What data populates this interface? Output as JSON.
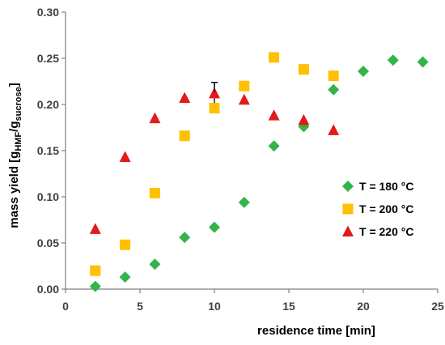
{
  "chart_data": {
    "type": "scatter",
    "xlabel": "residence time [min]",
    "ylabel": {
      "prefix": "mass yield  [g",
      "sub1": "HMF",
      "mid": "/g",
      "sub2": "sucrose",
      "suffix": "]"
    },
    "xlim": [
      0,
      25
    ],
    "ylim": [
      0,
      0.3
    ],
    "x_ticks": [
      "0",
      "5",
      "10",
      "15",
      "20",
      "25"
    ],
    "y_ticks": [
      "0.00",
      "0.05",
      "0.10",
      "0.15",
      "0.20",
      "0.25",
      "0.30"
    ],
    "grid": false,
    "legend_position": "right",
    "series": [
      {
        "name": "T = 180 °C",
        "marker": "diamond",
        "color": "#33B44A",
        "points": [
          [
            2,
            0.003
          ],
          [
            4,
            0.013
          ],
          [
            6,
            0.027
          ],
          [
            8,
            0.056
          ],
          [
            10,
            0.067
          ],
          [
            12,
            0.094
          ],
          [
            14,
            0.155
          ],
          [
            16,
            0.176
          ],
          [
            18,
            0.216
          ],
          [
            20,
            0.236
          ],
          [
            22,
            0.248
          ],
          [
            24,
            0.246
          ]
        ]
      },
      {
        "name": "T = 200 °C",
        "marker": "square",
        "color": "#FFC000",
        "points": [
          [
            2,
            0.02
          ],
          [
            4,
            0.048
          ],
          [
            6,
            0.104
          ],
          [
            8,
            0.166
          ],
          [
            10,
            0.196
          ],
          [
            12,
            0.22
          ],
          [
            14,
            0.251
          ],
          [
            16,
            0.238
          ],
          [
            18,
            0.231
          ]
        ]
      },
      {
        "name": "T = 220 °C",
        "marker": "triangle",
        "color": "#E21A1A",
        "points": [
          [
            2,
            0.065
          ],
          [
            4,
            0.143
          ],
          [
            6,
            0.185
          ],
          [
            8,
            0.207
          ],
          [
            10,
            0.212
          ],
          [
            12,
            0.205
          ],
          [
            14,
            0.188
          ],
          [
            16,
            0.183
          ],
          [
            18,
            0.172
          ]
        ]
      }
    ],
    "error_bars": [
      {
        "x": 10,
        "low": 0.201,
        "high": 0.224
      }
    ]
  }
}
